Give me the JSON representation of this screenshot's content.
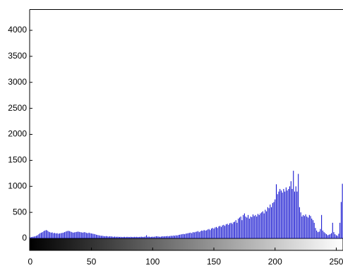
{
  "chart_data": {
    "type": "histogram",
    "color": "#0000cc",
    "values": [
      20,
      25,
      30,
      35,
      40,
      50,
      60,
      80,
      100,
      110,
      120,
      140,
      150,
      160,
      150,
      130,
      120,
      110,
      115,
      100,
      105,
      95,
      100,
      90,
      95,
      100,
      105,
      110,
      120,
      130,
      140,
      145,
      140,
      130,
      120,
      110,
      115,
      120,
      125,
      130,
      125,
      120,
      115,
      110,
      120,
      115,
      105,
      100,
      110,
      100,
      95,
      90,
      85,
      80,
      70,
      65,
      60,
      55,
      50,
      50,
      45,
      40,
      45,
      40,
      35,
      40,
      38,
      35,
      30,
      35,
      30,
      32,
      30,
      28,
      30,
      25,
      28,
      30,
      25,
      30,
      28,
      25,
      30,
      28,
      25,
      30,
      28,
      30,
      25,
      28,
      30,
      32,
      28,
      30,
      35,
      60,
      30,
      35,
      28,
      30,
      32,
      30,
      35,
      40,
      38,
      35,
      30,
      35,
      40,
      38,
      40,
      42,
      45,
      40,
      45,
      50,
      48,
      55,
      50,
      60,
      55,
      65,
      70,
      75,
      80,
      85,
      80,
      90,
      95,
      100,
      105,
      110,
      100,
      120,
      115,
      125,
      130,
      140,
      120,
      135,
      150,
      145,
      160,
      150,
      155,
      170,
      180,
      160,
      190,
      200,
      185,
      210,
      220,
      200,
      230,
      240,
      220,
      250,
      260,
      240,
      270,
      280,
      260,
      290,
      300,
      280,
      310,
      320,
      350,
      300,
      380,
      400,
      420,
      350,
      450,
      480,
      420,
      400,
      450,
      380,
      420,
      410,
      460,
      430,
      450,
      420,
      470,
      450,
      480,
      500,
      520,
      480,
      550,
      520,
      600,
      580,
      650,
      600,
      680,
      700,
      750,
      1040,
      850,
      900,
      950,
      920,
      880,
      950,
      900,
      980,
      920,
      950,
      1000,
      1100,
      950,
      1300,
      900,
      1000,
      900,
      1240,
      600,
      500,
      420,
      450,
      430,
      460,
      420,
      400,
      450,
      430,
      380,
      350,
      300,
      200,
      150,
      120,
      130,
      180,
      450,
      150,
      120,
      100,
      80,
      60,
      70,
      80,
      100,
      300,
      120,
      80,
      60,
      50,
      90,
      300,
      700,
      1050
    ],
    "xlim": [
      -0.5,
      255.5
    ],
    "xticks": [
      0,
      50,
      100,
      150,
      200,
      250
    ],
    "ylim": [
      0,
      4400
    ],
    "yticks": [
      0,
      500,
      1000,
      1500,
      2000,
      2500,
      3000,
      3500,
      4000
    ]
  }
}
